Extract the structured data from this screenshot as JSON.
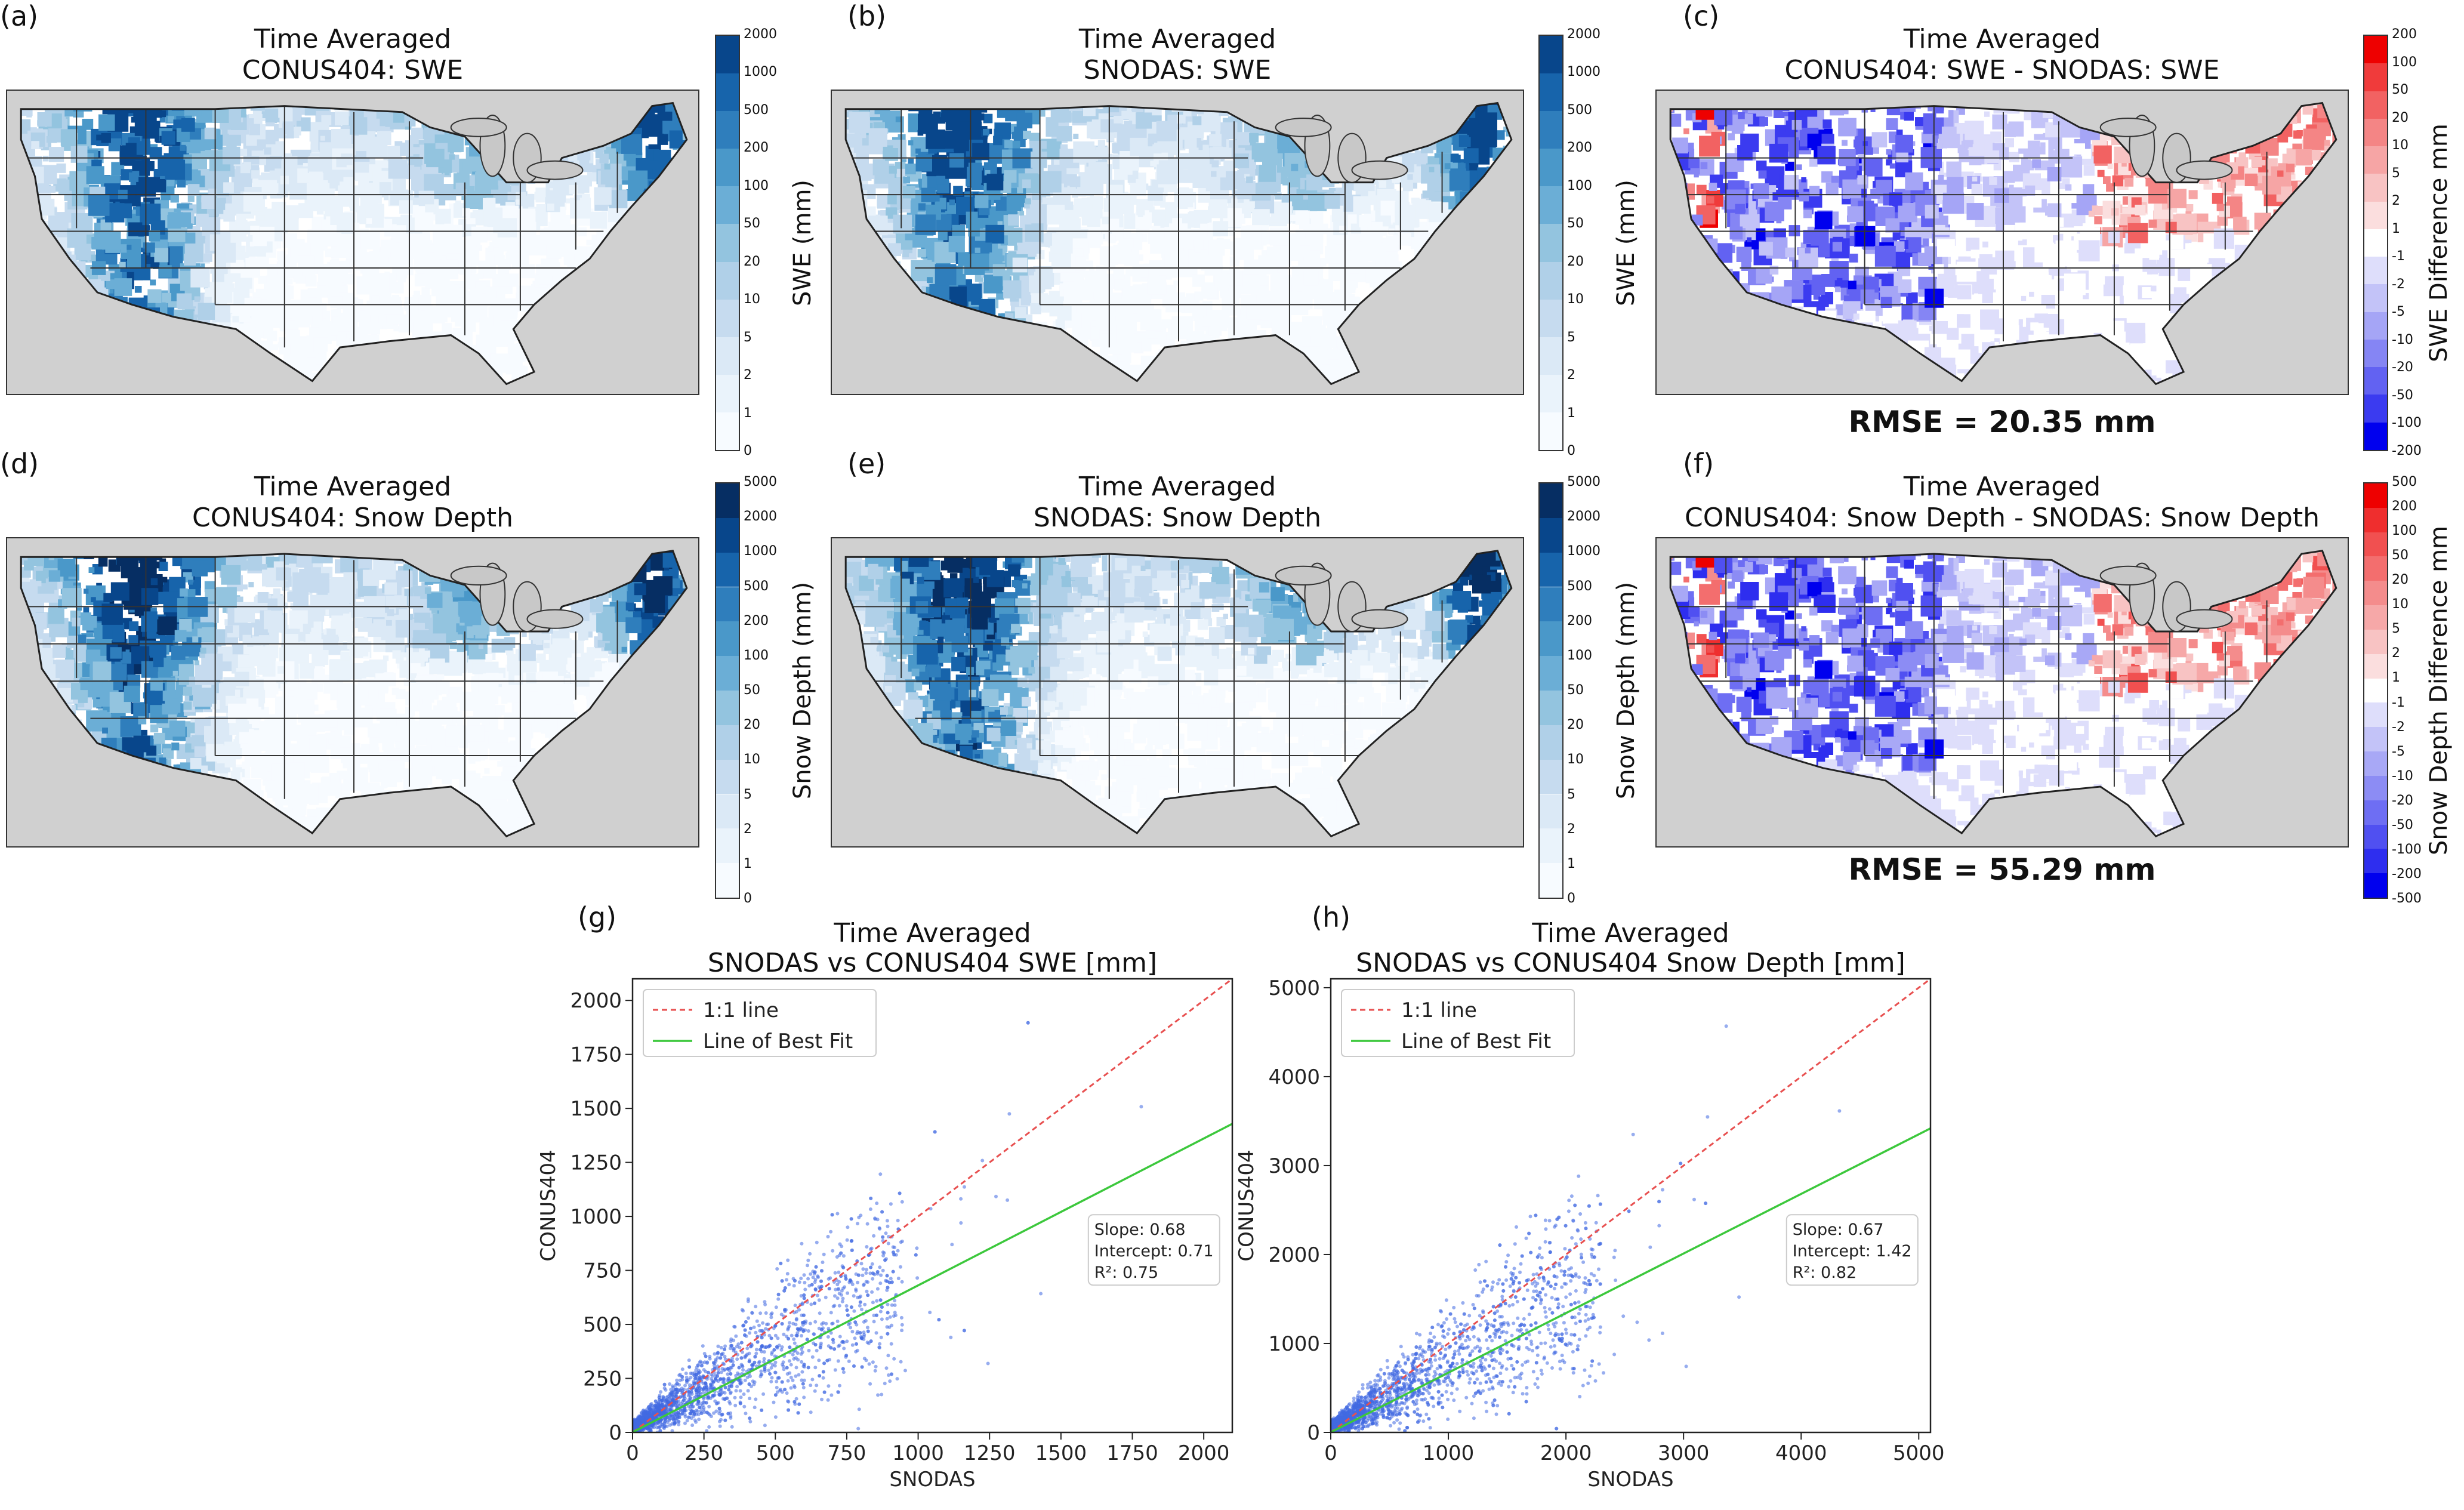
{
  "maps": [
    {
      "letter": "(a)",
      "title1": "Time Averaged",
      "title2": "CONUS404: SWE",
      "kind": "swe",
      "cbar": "swe"
    },
    {
      "letter": "(b)",
      "title1": "Time Averaged",
      "title2": "SNODAS: SWE",
      "kind": "swe",
      "cbar": "swe"
    },
    {
      "letter": "(c)",
      "title1": "Time Averaged",
      "title2": "CONUS404: SWE - SNODAS: SWE",
      "kind": "diff",
      "cbar": "swe_diff",
      "rmse": "RMSE = 20.35 mm"
    },
    {
      "letter": "(d)",
      "title1": "Time Averaged",
      "title2": "CONUS404: Snow Depth",
      "kind": "sd",
      "cbar": "sd"
    },
    {
      "letter": "(e)",
      "title1": "Time Averaged",
      "title2": "SNODAS: Snow Depth",
      "kind": "sd",
      "cbar": "sd"
    },
    {
      "letter": "(f)",
      "title1": "Time Averaged",
      "title2": "CONUS404: Snow Depth - SNODAS: Snow Depth",
      "kind": "diff",
      "cbar": "sd_diff",
      "rmse": "RMSE = 55.29 mm"
    }
  ],
  "colorbars": {
    "swe": {
      "label": "SWE (mm)",
      "ticks": [
        "0",
        "1",
        "2",
        "5",
        "10",
        "20",
        "50",
        "100",
        "200",
        "500",
        "1000",
        "2000"
      ],
      "colors": [
        "#f7fbff",
        "#eaf3fb",
        "#dbe9f6",
        "#c6dbef",
        "#b0d0e8",
        "#93c4df",
        "#6baed6",
        "#4a98c9",
        "#2f7ebc",
        "#1764ab",
        "#08468b"
      ]
    },
    "sd": {
      "label": "Snow Depth (mm)",
      "ticks": [
        "0",
        "1",
        "2",
        "5",
        "10",
        "20",
        "50",
        "100",
        "200",
        "500",
        "1000",
        "2000",
        "5000"
      ],
      "colors": [
        "#f7fbff",
        "#eaf3fb",
        "#dbe9f6",
        "#c6dbef",
        "#b0d0e8",
        "#93c4df",
        "#6baed6",
        "#4a98c9",
        "#2f7ebc",
        "#1764ab",
        "#08468b",
        "#062e63"
      ]
    },
    "swe_diff": {
      "label": "SWE Difference mm",
      "ticks": [
        "-200",
        "-100",
        "-50",
        "-20",
        "-10",
        "-5",
        "-2",
        "-1",
        "1",
        "2",
        "5",
        "10",
        "20",
        "50",
        "100",
        "200"
      ],
      "colors": [
        "#0000ee",
        "#3b3bf0",
        "#6262f2",
        "#8585f4",
        "#a5a5f6",
        "#c3c3f8",
        "#dedefb",
        "#ffffff",
        "#fbdede",
        "#f8c3c3",
        "#f6a5a5",
        "#f48585",
        "#f26262",
        "#f03b3b",
        "#ee0000"
      ]
    },
    "sd_diff": {
      "label": "Snow Depth Difference mm",
      "ticks": [
        "-500",
        "-200",
        "-100",
        "-50",
        "-20",
        "-10",
        "-5",
        "-2",
        "-1",
        "1",
        "2",
        "5",
        "10",
        "20",
        "50",
        "100",
        "200",
        "500"
      ],
      "colors": [
        "#0000ee",
        "#2e2eef",
        "#5050f1",
        "#6e6ef3",
        "#8c8cf4",
        "#a8a8f6",
        "#c3c3f8",
        "#dedefb",
        "#ffffff",
        "#fbdede",
        "#f8c3c3",
        "#f6a8a8",
        "#f48c8c",
        "#f36e6e",
        "#f15050",
        "#ef2e2e",
        "#ee0000"
      ]
    }
  },
  "chart_data": [
    {
      "type": "scatter",
      "letter": "(g)",
      "title1": "Time Averaged",
      "title2": "SNODAS vs CONUS404 SWE [mm]",
      "xlabel": "SNODAS",
      "ylabel": "CONUS404",
      "xlim": [
        0,
        2100
      ],
      "ylim": [
        0,
        2100
      ],
      "xticks": [
        0,
        250,
        500,
        750,
        1000,
        1250,
        1500,
        1750,
        2000
      ],
      "yticks": [
        0,
        250,
        500,
        750,
        1000,
        1250,
        1500,
        1750,
        2000
      ],
      "legend": [
        "1:1 line",
        "Line of Best Fit"
      ],
      "legend_position": "upper-left",
      "slope": 0.68,
      "intercept": 0.71,
      "r2": 0.75,
      "stats": [
        "Slope: 0.68",
        "Intercept: 0.71",
        "R²: 0.75"
      ],
      "point_color": "#4169e1",
      "one_to_one_color": "#e85050",
      "fit_color": "#3cc83c"
    },
    {
      "type": "scatter",
      "letter": "(h)",
      "title1": "Time Averaged",
      "title2": "SNODAS vs CONUS404 Snow Depth [mm]",
      "xlabel": "SNODAS",
      "ylabel": "CONUS404",
      "xlim": [
        0,
        5100
      ],
      "ylim": [
        0,
        5100
      ],
      "xticks": [
        0,
        1000,
        2000,
        3000,
        4000,
        5000
      ],
      "yticks": [
        0,
        1000,
        2000,
        3000,
        4000,
        5000
      ],
      "legend": [
        "1:1 line",
        "Line of Best Fit"
      ],
      "legend_position": "upper-left",
      "slope": 0.67,
      "intercept": 1.42,
      "r2": 0.82,
      "stats": [
        "Slope: 0.67",
        "Intercept: 1.42",
        "R²: 0.82"
      ],
      "point_color": "#4169e1",
      "one_to_one_color": "#e85050",
      "fit_color": "#3cc83c"
    }
  ]
}
